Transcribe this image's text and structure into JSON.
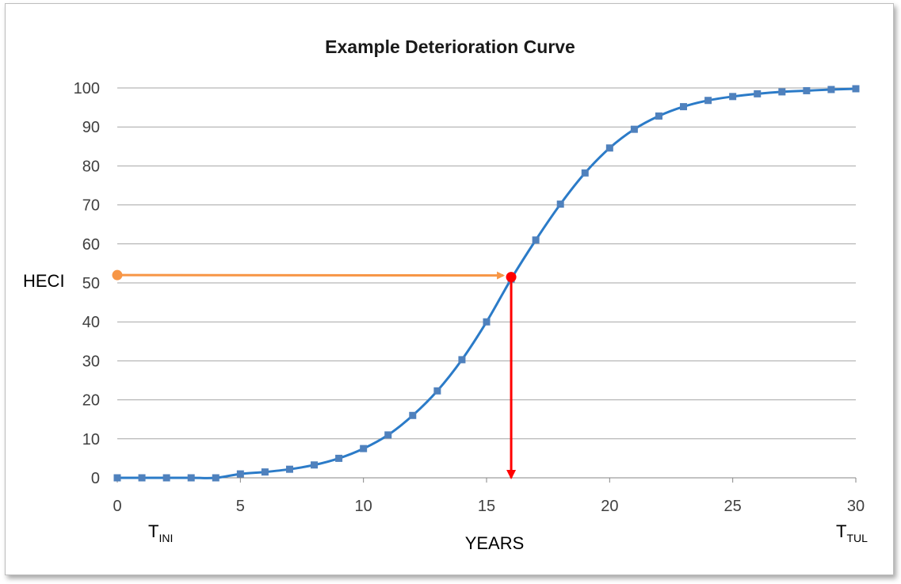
{
  "chart_data": {
    "type": "line",
    "title": "Example Deterioration Curve",
    "xlabel": "YEARS",
    "ylabel": "HECI",
    "xlim": [
      0,
      30
    ],
    "ylim": [
      0,
      100
    ],
    "x_ticks": [
      0,
      5,
      10,
      15,
      20,
      25,
      30
    ],
    "y_ticks": [
      0,
      10,
      20,
      30,
      40,
      50,
      60,
      70,
      80,
      90,
      100
    ],
    "grid": true,
    "legend": "none",
    "x": [
      0,
      1,
      2,
      3,
      4,
      5,
      6,
      7,
      8,
      9,
      10,
      11,
      12,
      13,
      14,
      15,
      16,
      17,
      18,
      19,
      20,
      21,
      22,
      23,
      24,
      25,
      26,
      27,
      28,
      29,
      30
    ],
    "values": [
      0,
      0,
      0,
      0,
      0,
      1,
      1.5,
      2.2,
      3.3,
      5,
      7.5,
      11,
      16,
      22.3,
      30.3,
      40,
      51,
      61,
      70.2,
      78.2,
      84.6,
      89.4,
      92.8,
      95.2,
      96.8,
      97.8,
      98.5,
      99,
      99.3,
      99.6,
      99.8
    ],
    "series_color": "#2b7bc8",
    "marker_color": "#4f81bd",
    "annotations": {
      "start_label": {
        "main": "T",
        "sub": "INI",
        "x": 0
      },
      "end_label": {
        "main": "T",
        "sub": "TUL",
        "x": 30
      },
      "heci_point": {
        "x": 16,
        "y": 51.5,
        "color": "#ff0000"
      },
      "heci_start": {
        "x": 0,
        "y": 52,
        "color": "#f79646"
      },
      "horizontal_arrow_color": "#f79646",
      "vertical_arrow_color": "#ff0000"
    }
  }
}
